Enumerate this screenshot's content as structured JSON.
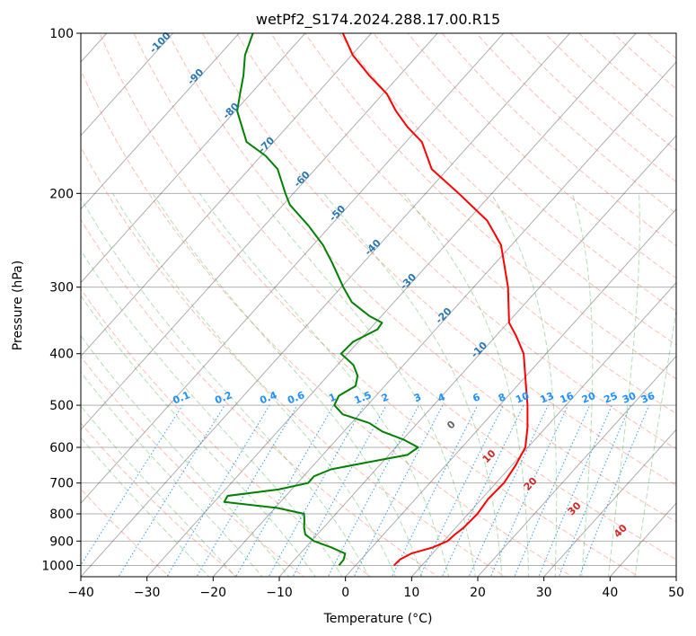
{
  "chart_data": {
    "type": "line",
    "title": "wetPf2_S174.2024.288.17.00.R15",
    "xlabel": "Temperature (°C)",
    "ylabel": "Pressure (hPa)",
    "xlim": [
      -40,
      50
    ],
    "ylim": [
      1050,
      100
    ],
    "y_scale": "log",
    "xticks": [
      -40,
      -30,
      -20,
      -10,
      0,
      10,
      20,
      30,
      40,
      50
    ],
    "yticks": [
      1000,
      900,
      800,
      700,
      600,
      500,
      400,
      300,
      200,
      100
    ],
    "grid": true,
    "series": [
      {
        "name": "",
        "role": "temperature",
        "color": "#ff0000",
        "points": [
          [
            1000,
            5.8
          ],
          [
            975,
            5.9
          ],
          [
            950,
            6.8
          ],
          [
            925,
            9.2
          ],
          [
            900,
            10.6
          ],
          [
            875,
            10.8
          ],
          [
            850,
            11.2
          ],
          [
            800,
            11.4
          ],
          [
            750,
            11.0
          ],
          [
            700,
            11.2
          ],
          [
            650,
            10.6
          ],
          [
            600,
            9.6
          ],
          [
            550,
            7.2
          ],
          [
            500,
            4.2
          ],
          [
            450,
            0.6
          ],
          [
            400,
            -3.4
          ],
          [
            370,
            -7.0
          ],
          [
            350,
            -9.8
          ],
          [
            300,
            -14.8
          ],
          [
            250,
            -21.6
          ],
          [
            225,
            -27.0
          ],
          [
            200,
            -35.0
          ],
          [
            180,
            -42.4
          ],
          [
            160,
            -47.6
          ],
          [
            150,
            -51.8
          ],
          [
            140,
            -55.7
          ],
          [
            130,
            -59.4
          ],
          [
            120,
            -64.6
          ],
          [
            110,
            -69.8
          ],
          [
            100,
            -74.3
          ]
        ]
      },
      {
        "name": "",
        "role": "dewpoint",
        "color": "#008000",
        "points": [
          [
            1000,
            -2.5
          ],
          [
            975,
            -2.6
          ],
          [
            950,
            -3.2
          ],
          [
            925,
            -6.1
          ],
          [
            900,
            -9.6
          ],
          [
            875,
            -11.8
          ],
          [
            850,
            -12.9
          ],
          [
            825,
            -13.8
          ],
          [
            800,
            -14.8
          ],
          [
            780,
            -19.6
          ],
          [
            760,
            -28.5
          ],
          [
            740,
            -28.8
          ],
          [
            720,
            -22.0
          ],
          [
            700,
            -18.4
          ],
          [
            680,
            -18.4
          ],
          [
            660,
            -16.8
          ],
          [
            640,
            -12.2
          ],
          [
            620,
            -7.2
          ],
          [
            600,
            -6.6
          ],
          [
            580,
            -9.9
          ],
          [
            560,
            -14.2
          ],
          [
            540,
            -17.3
          ],
          [
            520,
            -22.5
          ],
          [
            500,
            -25.0
          ],
          [
            480,
            -25.6
          ],
          [
            460,
            -24.4
          ],
          [
            440,
            -25.5
          ],
          [
            420,
            -27.6
          ],
          [
            400,
            -31.0
          ],
          [
            380,
            -30.8
          ],
          [
            360,
            -28.8
          ],
          [
            350,
            -29.0
          ],
          [
            340,
            -31.8
          ],
          [
            320,
            -36.4
          ],
          [
            300,
            -39.7
          ],
          [
            270,
            -44.7
          ],
          [
            250,
            -48.5
          ],
          [
            230,
            -53.3
          ],
          [
            210,
            -59.0
          ],
          [
            200,
            -61.2
          ],
          [
            180,
            -65.7
          ],
          [
            170,
            -69.3
          ],
          [
            160,
            -74.1
          ],
          [
            150,
            -76.8
          ],
          [
            140,
            -79.7
          ],
          [
            130,
            -81.6
          ],
          [
            120,
            -83.6
          ],
          [
            110,
            -86.1
          ],
          [
            100,
            -87.9
          ]
        ]
      }
    ],
    "background_lines": {
      "isotherm_color": "#000000",
      "dry_adiabat_color": "#ff6347",
      "moist_adiabat_color": "#2ca02c",
      "mixing_ratio_color": "#1e90ff"
    },
    "isotherm_labels": [
      "-100",
      "-90",
      "-80",
      "-70",
      "-60",
      "-50",
      "-40",
      "-30",
      "-20",
      "-10"
    ],
    "mixing_ratio_labels": [
      "0.1",
      "0.2",
      "0.4",
      "0.6",
      "1",
      "1.5",
      "2",
      "3",
      "4",
      "6",
      "8",
      "10",
      "13",
      "16",
      "20",
      "25",
      "30",
      "36"
    ],
    "moist_adiabat_labels": [
      "0",
      "10",
      "20",
      "30",
      "40"
    ]
  }
}
